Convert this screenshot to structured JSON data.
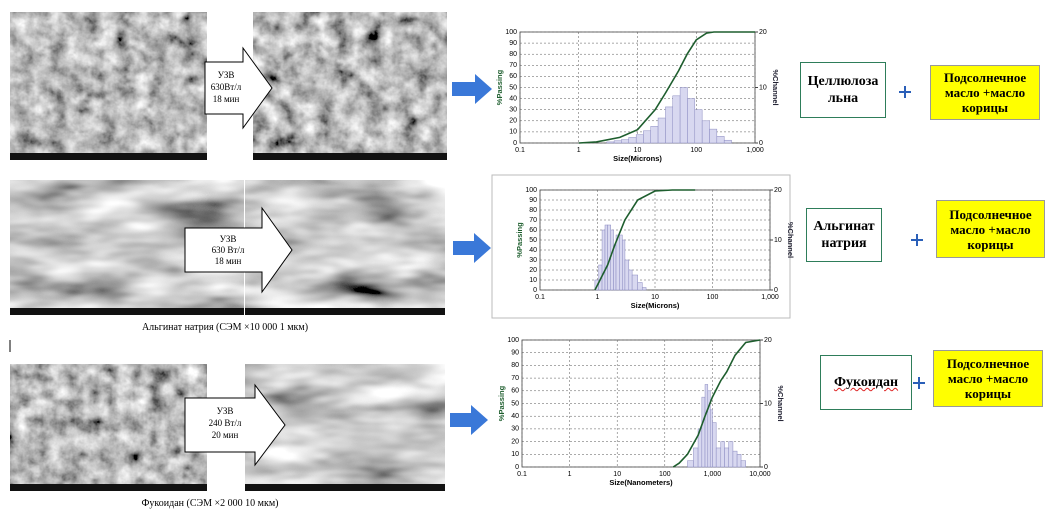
{
  "rows": [
    {
      "treatment": [
        "УЗВ",
        "630Вт/л",
        "18 мин"
      ],
      "material": "Целлюлоза льна",
      "additive": "Подсолнечное масло +масло корицы"
    },
    {
      "treatment": [
        "УЗВ",
        "630 Вт/л",
        "18 мин"
      ],
      "caption": "Альгинат натрия (СЭМ ×10 000 1 мкм)",
      "material": "Альгинат натрия",
      "additive": "Подсолнечное масло +масло корицы"
    },
    {
      "treatment": [
        "УЗВ",
        "240 Вт/л",
        "20 мин"
      ],
      "caption": "Фукоидан (СЭМ ×2 000 10 мкм)",
      "material": "Фукоидан",
      "additive": "Подсолнечное масло +масло корицы"
    }
  ],
  "chart_data": [
    {
      "type": "histogram",
      "x_label": "Size(Microns)",
      "y_label": "%Passing",
      "y2_label": "%Channel",
      "xscale": "log",
      "xlim": [
        0.1,
        1000
      ],
      "xticks": [
        0.1,
        1,
        10,
        100,
        {
          "value": 1000,
          "label": "1,000"
        }
      ],
      "ylim": [
        0,
        100
      ],
      "yticks": [
        0,
        10,
        20,
        30,
        40,
        50,
        60,
        70,
        80,
        90,
        100
      ],
      "y2lim": [
        0,
        20
      ],
      "y2ticks": [
        0,
        10,
        20
      ],
      "grid": true,
      "series": [
        {
          "axis": "y2",
          "color": "#d8d8f0",
          "bins": [
            3,
            4,
            5.3,
            7.1,
            9.5,
            12.6,
            16.8,
            22.4,
            29.9,
            39.8,
            53.1,
            70.8,
            94.4,
            126,
            168,
            224,
            299,
            398
          ],
          "values": [
            0.2,
            0.4,
            0.6,
            1,
            1.5,
            2.2,
            3,
            4.5,
            6.5,
            8.5,
            10,
            8,
            6,
            4,
            2.5,
            1.2,
            0.5
          ]
        },
        {
          "color": "#1e5e2e",
          "x": [
            1,
            2,
            5,
            10,
            20,
            30,
            50,
            70,
            100,
            150,
            200,
            1000
          ],
          "values": [
            0,
            1,
            5,
            12,
            30,
            45,
            65,
            80,
            93,
            99,
            100,
            100
          ]
        }
      ]
    },
    {
      "type": "histogram",
      "x_label": "Size(Microns)",
      "y_label": "%Passing",
      "y2_label": "%Channel",
      "xscale": "log",
      "xlim": [
        0.1,
        1000
      ],
      "xticks": [
        0.1,
        1,
        10,
        100,
        {
          "value": 1000,
          "label": "1,000"
        }
      ],
      "ylim": [
        0,
        100
      ],
      "yticks": [
        0,
        10,
        20,
        30,
        40,
        50,
        60,
        70,
        80,
        90,
        100
      ],
      "y2lim": [
        0,
        20
      ],
      "y2ticks": [
        0,
        10,
        20
      ],
      "grid": true,
      "series": [
        {
          "axis": "y2",
          "color": "#d8d8f0",
          "bins": [
            0.9,
            1.05,
            1.2,
            1.35,
            1.5,
            1.7,
            1.9,
            2.1,
            2.4,
            2.7,
            3,
            3.5,
            4,
            5,
            6,
            7
          ],
          "values": [
            2,
            5,
            12,
            13,
            13,
            12,
            9,
            11,
            11,
            10,
            6,
            4,
            3,
            1.5,
            0.5
          ]
        },
        {
          "color": "#1e5e2e",
          "x": [
            0.9,
            1,
            1.5,
            2,
            3,
            5,
            10,
            20,
            50
          ],
          "values": [
            0,
            5,
            25,
            45,
            70,
            90,
            99,
            100,
            100
          ]
        }
      ]
    },
    {
      "type": "histogram",
      "x_label": "Size(Nanometers)",
      "y_label": "%Passing",
      "y2_label": "%Channel",
      "xscale": "log",
      "xlim": [
        0.1,
        10000
      ],
      "xticks": [
        0.1,
        1,
        10,
        100,
        {
          "value": 1000,
          "label": "1,000"
        },
        {
          "value": 10000,
          "label": "10,000"
        }
      ],
      "ylim": [
        0,
        100
      ],
      "yticks": [
        0,
        10,
        20,
        30,
        40,
        50,
        60,
        70,
        80,
        90,
        100
      ],
      "y2lim": [
        0,
        20
      ],
      "y2ticks": [
        0,
        10,
        20
      ],
      "grid": true,
      "series": [
        {
          "axis": "y2",
          "color": "#d8d8f0",
          "bins": [
            300,
            400,
            500,
            600,
            700,
            800,
            900,
            1000,
            1200,
            1500,
            1800,
            2200,
            2700,
            3300,
            4000,
            5000
          ],
          "values": [
            1,
            3,
            6,
            11,
            13,
            12,
            9,
            7,
            3,
            4,
            3,
            4,
            2.5,
            2,
            1
          ]
        },
        {
          "color": "#1e5e2e",
          "x": [
            150,
            200,
            300,
            500,
            700,
            1000,
            1500,
            2000,
            3000,
            5000,
            10000
          ],
          "values": [
            0,
            3,
            10,
            25,
            40,
            55,
            68,
            75,
            88,
            98,
            100
          ]
        }
      ]
    }
  ]
}
